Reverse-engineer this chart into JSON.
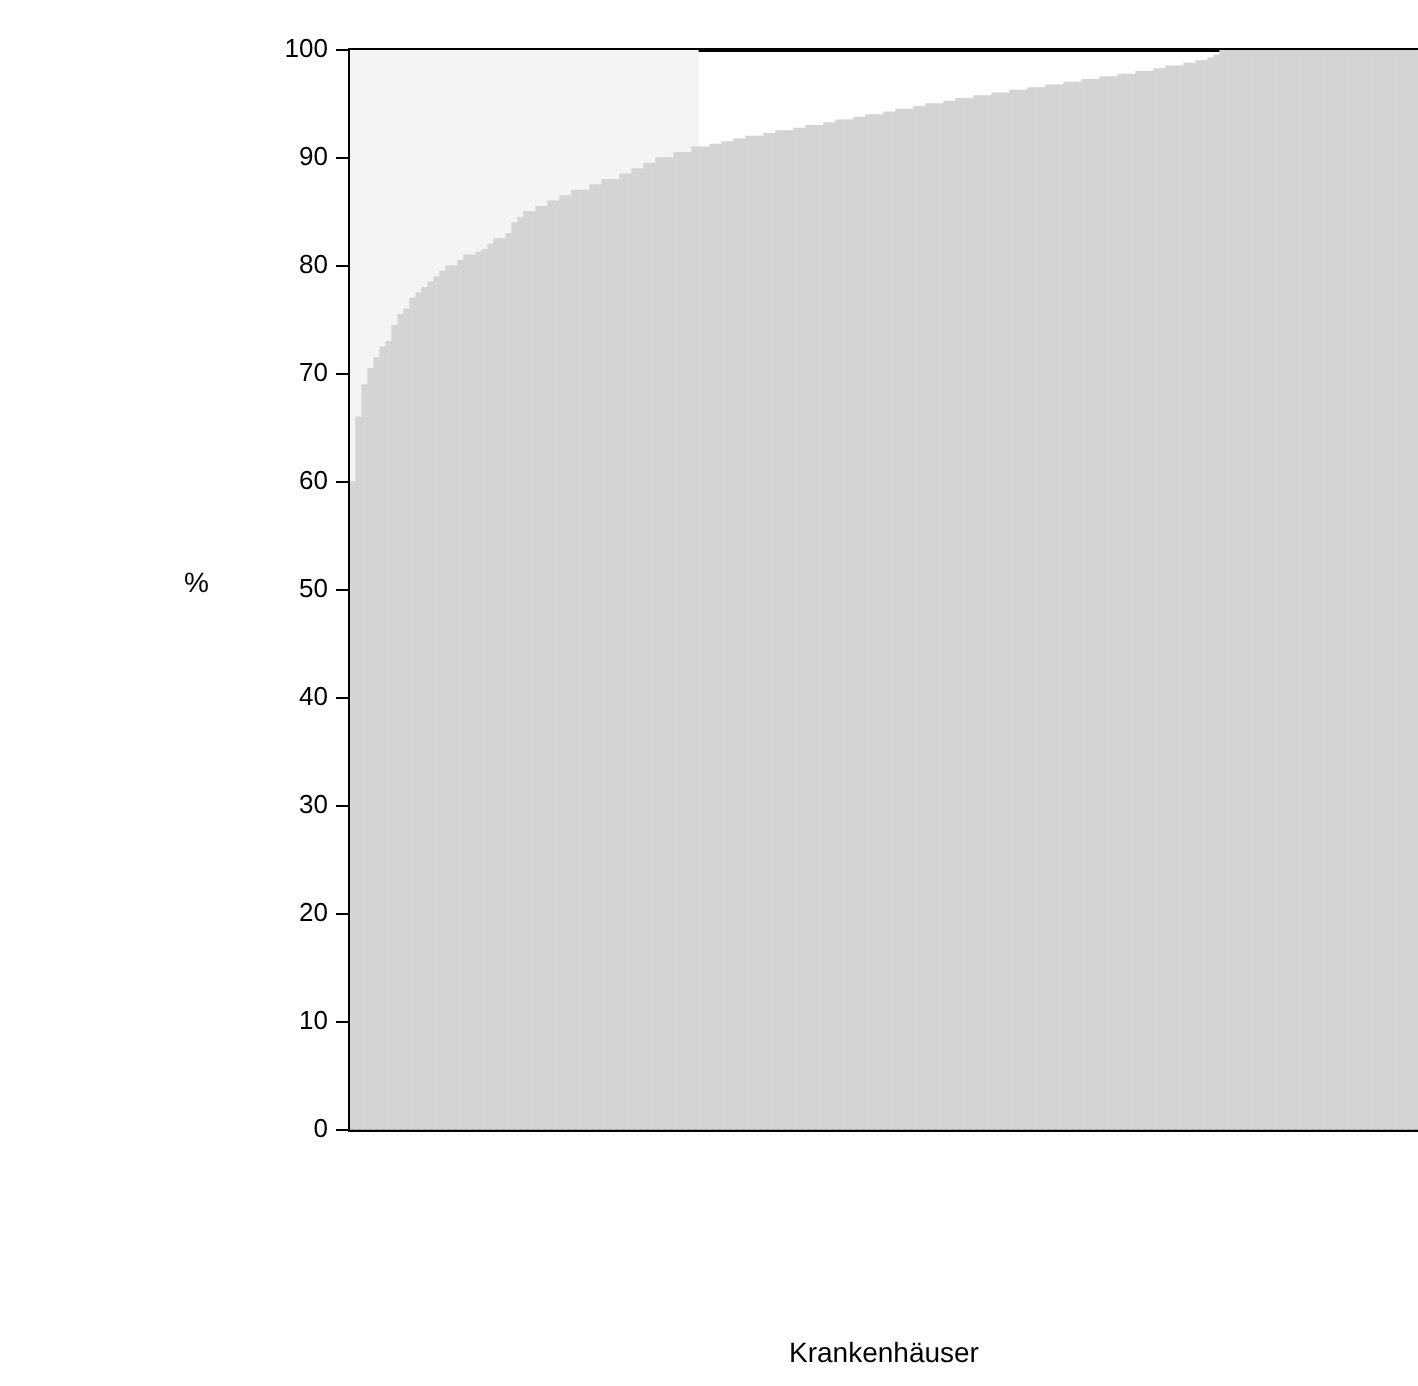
{
  "chart_data": {
    "type": "bar",
    "stacked": true,
    "annotations": [
      "Krankenhäuser"
    ],
    "ylabel": "%",
    "categories": [
      null,
      null,
      null,
      null,
      null,
      null,
      null,
      null,
      null,
      null,
      null,
      null,
      null,
      null,
      null,
      null,
      null,
      null,
      null,
      null,
      null,
      null,
      null,
      null,
      null,
      null,
      null,
      null,
      null,
      null,
      null,
      null,
      null,
      null,
      null,
      null,
      null,
      null,
      null,
      null,
      null,
      null,
      null,
      null,
      null,
      null,
      null,
      null,
      null,
      null,
      null,
      null,
      null,
      null,
      null,
      null,
      null,
      null,
      null,
      null,
      null,
      null,
      null,
      null,
      null,
      null,
      null,
      null,
      null,
      null,
      null,
      null,
      null,
      null,
      null,
      null,
      null,
      null,
      null,
      null,
      null,
      null,
      null,
      null,
      null,
      null,
      null,
      null,
      null,
      null,
      null,
      null,
      null,
      null,
      null,
      null,
      null,
      null,
      null,
      null,
      null,
      null,
      null,
      null,
      null,
      null,
      null,
      null,
      null,
      null,
      null,
      null,
      null,
      null,
      null,
      null,
      null,
      null,
      null,
      null,
      null,
      null,
      null,
      null,
      null,
      null,
      null,
      null,
      null,
      null,
      null,
      null,
      null,
      null,
      null,
      null,
      null,
      null,
      null,
      null,
      null,
      null,
      null,
      null,
      null,
      null,
      null,
      null,
      null,
      null,
      null,
      null,
      null,
      null,
      null,
      null,
      null,
      null,
      null,
      null,
      null,
      null,
      null,
      null,
      null,
      null,
      null,
      null,
      null,
      null,
      null,
      null,
      null,
      null,
      null,
      null,
      null,
      null
    ],
    "series": [
      {
        "color": "#d4d4d4",
        "values": [
          60,
          66,
          69,
          70.5,
          71.5,
          72.5,
          73,
          74.5,
          75.5,
          76,
          77,
          77.5,
          78,
          78.5,
          79,
          79.5,
          80,
          80,
          80.5,
          81,
          81,
          81.25,
          81.5,
          82,
          82.5,
          82.5,
          83,
          84,
          84.5,
          85,
          85,
          85.5,
          85.5,
          86,
          86,
          86.5,
          86.5,
          87,
          87,
          87,
          87.5,
          87.5,
          88,
          88,
          88,
          88.5,
          88.5,
          89,
          89,
          89.5,
          89.5,
          90,
          90,
          90,
          90.5,
          90.5,
          90.5,
          91,
          91,
          91,
          91.25,
          91.25,
          91.5,
          91.5,
          91.75,
          91.75,
          92,
          92,
          92,
          92.25,
          92.25,
          92.5,
          92.5,
          92.5,
          92.75,
          92.75,
          93,
          93,
          93,
          93.25,
          93.25,
          93.5,
          93.5,
          93.5,
          93.75,
          93.75,
          94,
          94,
          94,
          94.25,
          94.25,
          94.5,
          94.5,
          94.5,
          94.75,
          94.75,
          95,
          95,
          95,
          95.25,
          95.25,
          95.5,
          95.5,
          95.5,
          95.75,
          95.75,
          95.75,
          96,
          96,
          96,
          96.25,
          96.25,
          96.25,
          96.5,
          96.5,
          96.5,
          96.75,
          96.75,
          96.75,
          97,
          97,
          97,
          97.25,
          97.25,
          97.25,
          97.5,
          97.5,
          97.5,
          97.75,
          97.75,
          97.75,
          98,
          98,
          98,
          98.25,
          98.25,
          98.5,
          98.5,
          98.5,
          98.75,
          98.75,
          99,
          99,
          99.25,
          99.5,
          100,
          100,
          100,
          100,
          100,
          100,
          100,
          100,
          100,
          100,
          100,
          100,
          100,
          100,
          100,
          100,
          100,
          100,
          100,
          100,
          100,
          100,
          100,
          100,
          100,
          100,
          100,
          100,
          100,
          100,
          100,
          100,
          100
        ]
      },
      {
        "color": "#f4f4f4",
        "values": [
          40,
          34,
          31,
          29.5,
          28.5,
          27.5,
          27,
          25.5,
          24.5,
          24,
          23,
          22.5,
          22,
          21.5,
          21,
          20.5,
          20,
          20,
          19.5,
          19,
          19,
          18.75,
          18.5,
          18,
          17.5,
          17.5,
          17,
          16,
          15.5,
          15,
          15,
          14.5,
          14.5,
          14,
          14,
          13.5,
          13.5,
          13,
          13,
          13,
          12.5,
          12.5,
          12,
          12,
          12,
          11.5,
          11.5,
          11,
          11,
          10.5,
          10.5,
          10,
          10,
          10,
          9.5,
          9.5,
          9.5,
          9,
          null,
          null,
          null,
          null,
          null,
          null,
          null,
          null,
          null,
          null,
          null,
          null,
          null,
          null,
          null,
          null,
          null,
          null,
          null,
          null,
          null,
          null,
          null,
          null,
          null,
          null,
          null,
          null,
          null,
          null,
          null,
          null,
          null,
          null,
          null,
          null,
          null,
          null,
          null,
          null,
          null,
          null,
          null,
          null,
          null,
          null,
          null,
          null,
          null,
          null,
          null,
          null,
          null,
          null,
          null,
          null,
          null,
          null,
          null,
          null,
          null,
          null,
          null,
          null,
          null,
          null,
          null,
          null,
          null,
          null,
          null,
          null,
          null,
          null,
          null,
          null,
          null,
          null,
          null,
          null,
          null,
          null,
          null,
          null,
          null,
          null,
          null,
          null,
          null,
          null,
          null,
          null,
          null,
          null,
          null,
          null,
          null,
          null,
          null,
          null,
          null,
          null,
          null,
          null,
          null,
          null,
          null,
          null,
          null,
          null,
          null,
          null,
          null,
          null,
          null,
          null,
          null,
          null,
          null,
          null
        ]
      }
    ],
    "ylim": [
      0,
      100
    ],
    "yticks": [
      0,
      10,
      20,
      30,
      40,
      50,
      60,
      70,
      80,
      90,
      100
    ],
    "grid": false,
    "legend": false,
    "tick_labels": "y"
  }
}
